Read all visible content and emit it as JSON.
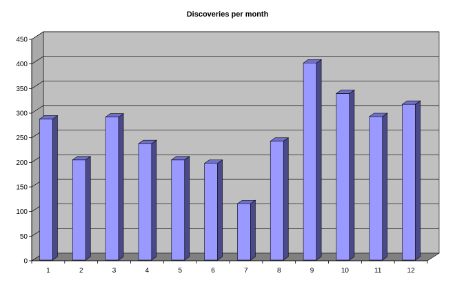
{
  "chart_data": {
    "type": "bar",
    "title": "Discoveries per month",
    "xlabel": "",
    "ylabel": "",
    "categories": [
      "1",
      "2",
      "3",
      "4",
      "5",
      "6",
      "7",
      "8",
      "9",
      "10",
      "11",
      "12"
    ],
    "values": [
      288,
      205,
      292,
      238,
      205,
      198,
      116,
      243,
      402,
      340,
      293,
      318
    ],
    "ylim": [
      0,
      450
    ],
    "yticks": [
      0,
      50,
      100,
      150,
      200,
      250,
      300,
      350,
      400,
      450
    ],
    "grid": true,
    "legend": "none",
    "colors": {
      "bar_front": "#9999ff",
      "bar_side": "#4a4a8a",
      "bar_top": "#7070c8",
      "back_wall": "#c0c0c0",
      "side_wall": "#aaaaaa",
      "floor": "#808080",
      "grid": "#000000"
    }
  }
}
